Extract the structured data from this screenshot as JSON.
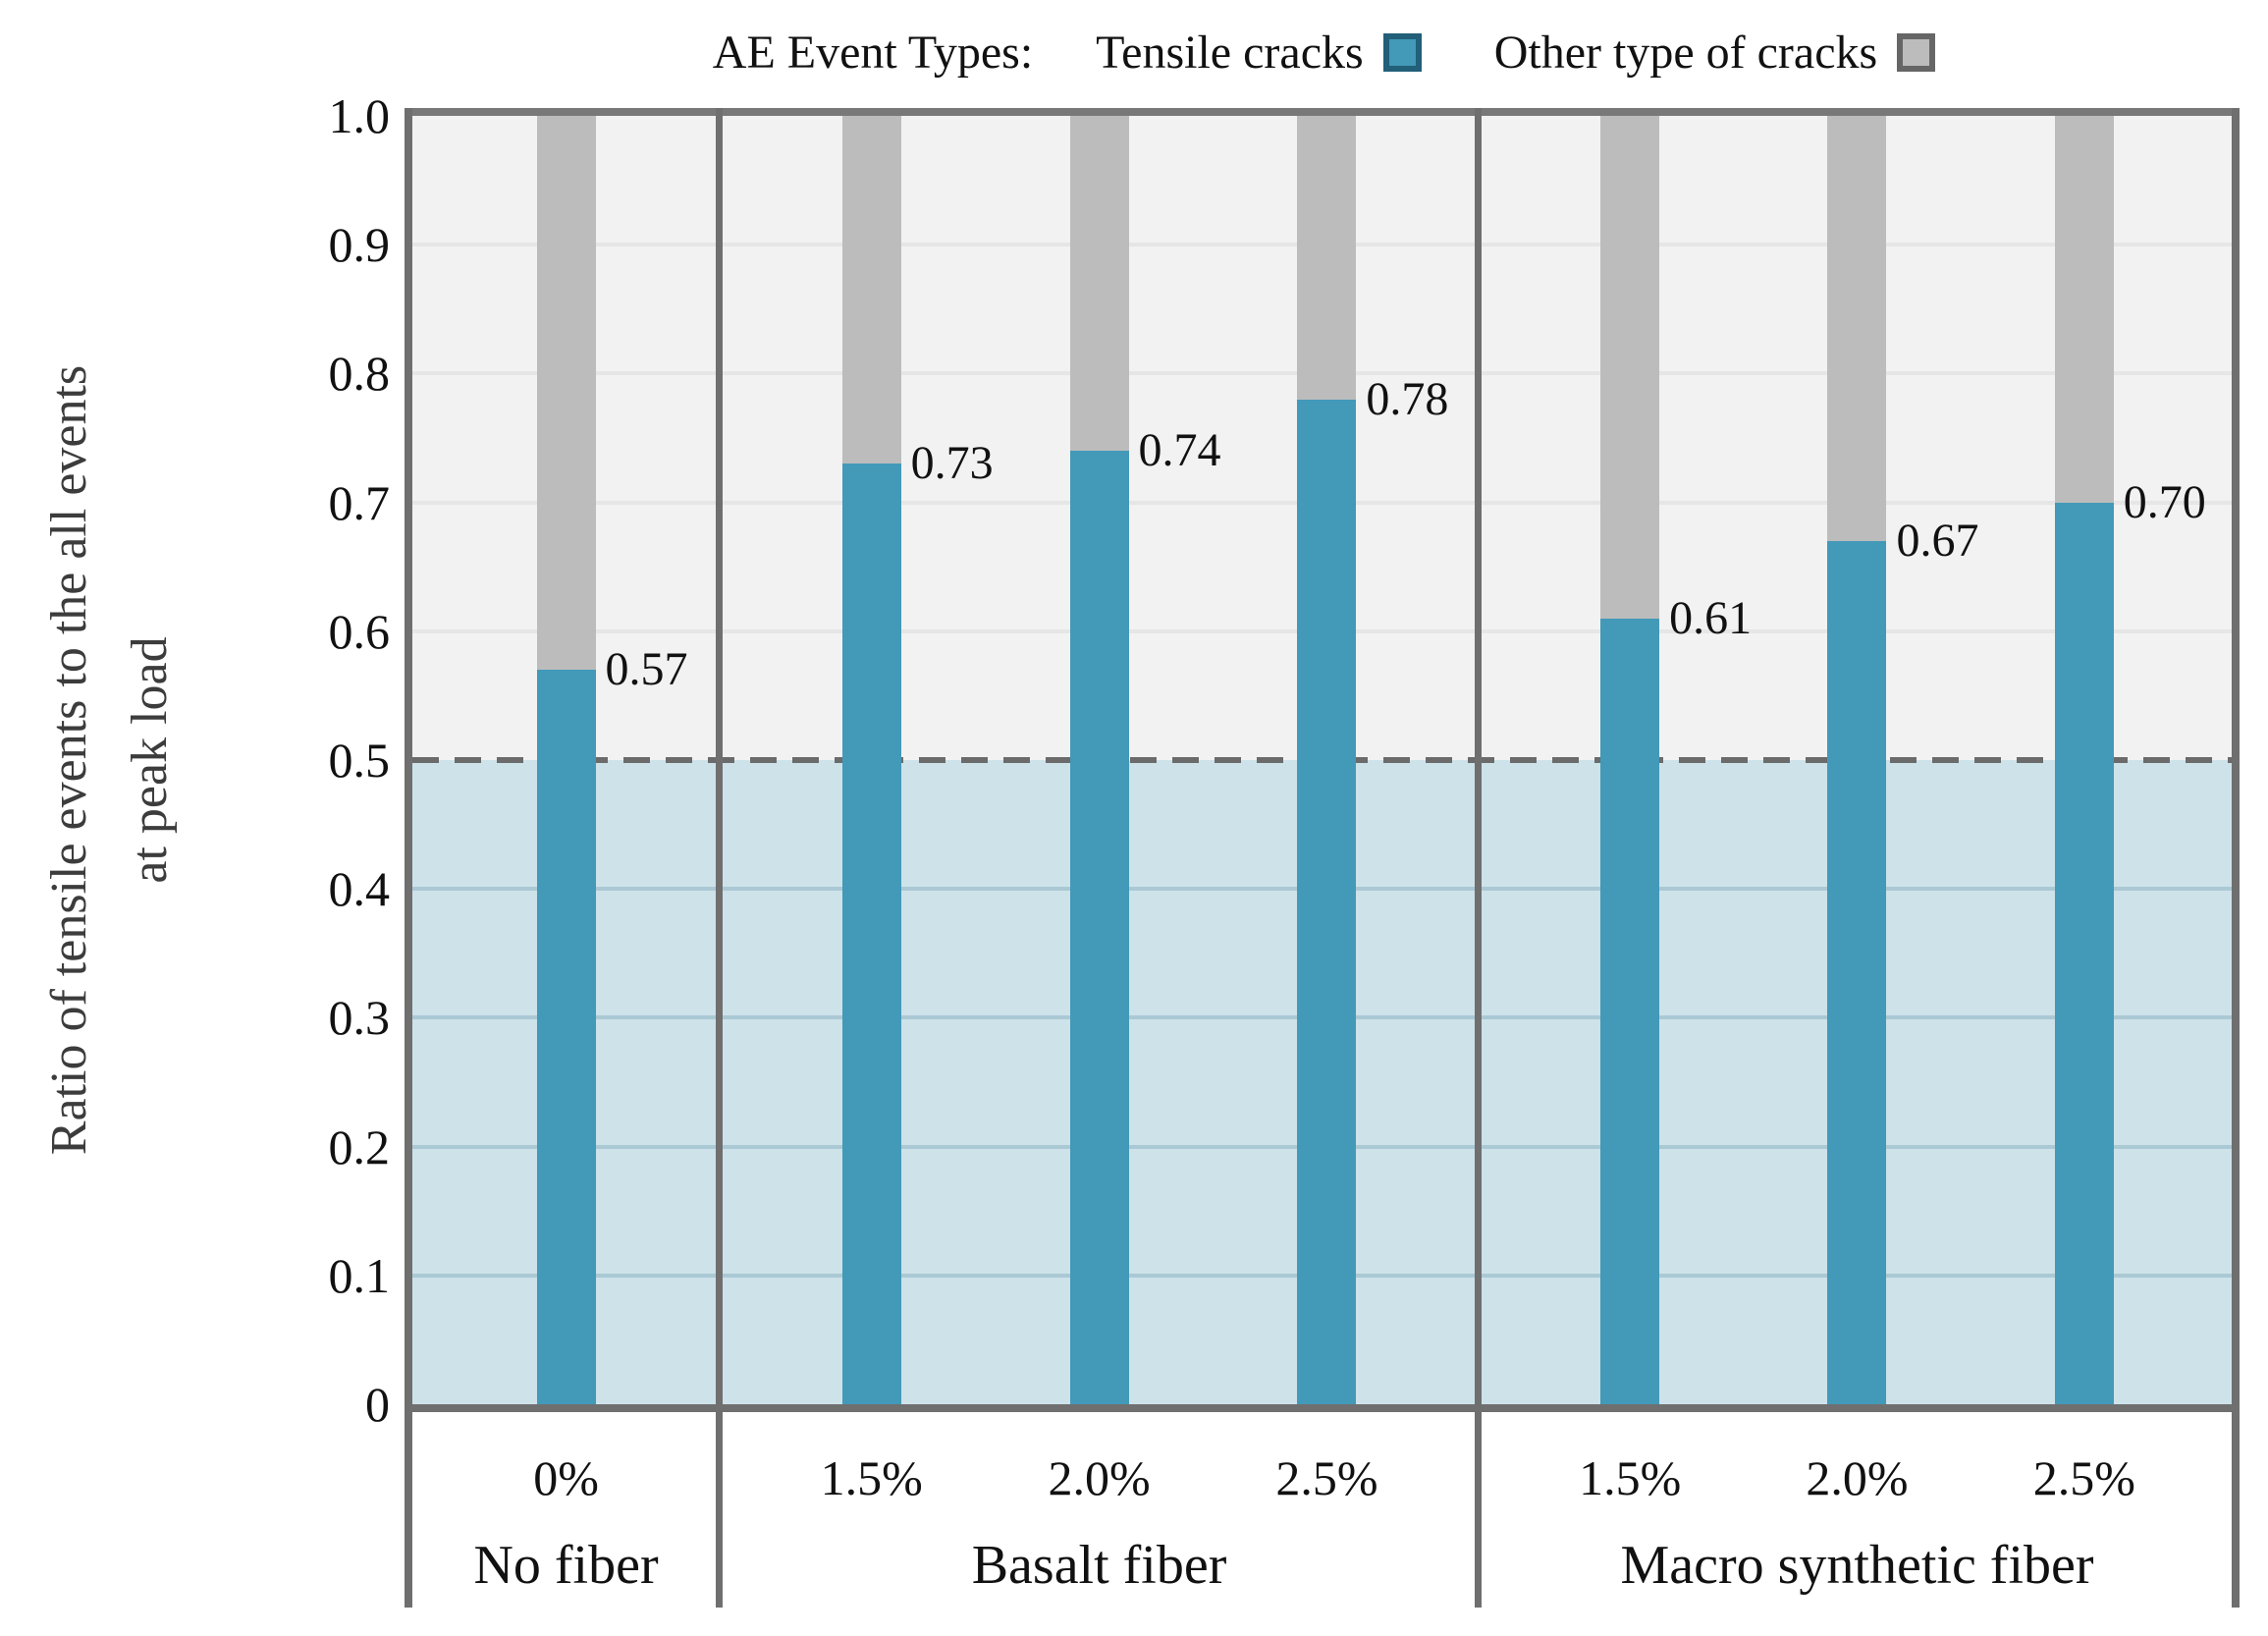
{
  "legend": {
    "title": "AE Event Types:",
    "items": [
      {
        "label": "Tensile cracks",
        "swatch_fill": "#4399b8",
        "swatch_border": "#225f78"
      },
      {
        "label": "Other type of cracks",
        "swatch_fill": "#bcbcbd",
        "swatch_border": "#666666"
      }
    ]
  },
  "y_axis": {
    "title_line1": "Ratio of tensile events to the all events",
    "title_line2": "at peak load",
    "ticks": [
      "1.0",
      "0.9",
      "0.8",
      "0.7",
      "0.6",
      "0.5",
      "0.4",
      "0.3",
      "0.2",
      "0.1",
      "0"
    ]
  },
  "chart_data": {
    "type": "bar",
    "stacked": true,
    "title": "AE Event Types:",
    "ylabel": "Ratio of tensile events to the all events at peak load",
    "xlabel": "",
    "ylim": [
      0,
      1.0
    ],
    "ytick_step": 0.1,
    "grid": true,
    "legend_position": "top",
    "reference_line_y": 0.5,
    "categories": [
      "0%",
      "1.5%",
      "2.0%",
      "2.5%",
      "1.5%",
      "2.0%",
      "2.5%"
    ],
    "category_groups": [
      "No fiber",
      "Basalt fiber",
      "Basalt fiber",
      "Basalt fiber",
      "Macro synthetic fiber",
      "Macro synthetic fiber",
      "Macro synthetic fiber"
    ],
    "series": [
      {
        "name": "Tensile cracks",
        "color": "#4399b8",
        "values": [
          0.57,
          0.73,
          0.74,
          0.78,
          0.61,
          0.67,
          0.7
        ]
      },
      {
        "name": "Other type of cracks",
        "color": "#bcbcbd",
        "values": [
          0.43,
          0.27,
          0.26,
          0.22,
          0.39,
          0.33,
          0.3
        ]
      }
    ],
    "value_labels": [
      "0.57",
      "0.73",
      "0.74",
      "0.78",
      "0.61",
      "0.67",
      "0.70"
    ],
    "groups": [
      {
        "label": "No fiber",
        "span_frac": [
          0.0,
          0.1686
        ],
        "slots": [
          0.5
        ],
        "bars": [
          {
            "pct": "0%",
            "value": 0.57,
            "label": "0.57"
          }
        ]
      },
      {
        "label": "Basalt fiber",
        "span_frac": [
          0.1686,
          0.5848
        ],
        "slots": [
          0.2,
          0.5,
          0.8
        ],
        "bars": [
          {
            "pct": "1.5%",
            "value": 0.73,
            "label": "0.73"
          },
          {
            "pct": "2.0%",
            "value": 0.74,
            "label": "0.74"
          },
          {
            "pct": "2.5%",
            "value": 0.78,
            "label": "0.78"
          }
        ]
      },
      {
        "label": "Macro synthetic fiber",
        "span_frac": [
          0.5848,
          1.0
        ],
        "slots": [
          0.2,
          0.5,
          0.8
        ],
        "bars": [
          {
            "pct": "1.5%",
            "value": 0.61,
            "label": "0.61"
          },
          {
            "pct": "2.0%",
            "value": 0.67,
            "label": "0.67"
          },
          {
            "pct": "2.5%",
            "value": 0.7,
            "label": "0.70"
          }
        ]
      }
    ],
    "colors": {
      "tensile": "#4399b8",
      "other": "#bcbcbd",
      "below_ref_fill": "#cee2ea",
      "plot_bg": "#f2f2f2",
      "grid_high": "#e6e6e6",
      "grid_low": "#aac9d5",
      "frame": "#6f6f6f",
      "frame_top": "#787878",
      "ref_line": "#6b6b6b",
      "text": "#111111"
    }
  }
}
